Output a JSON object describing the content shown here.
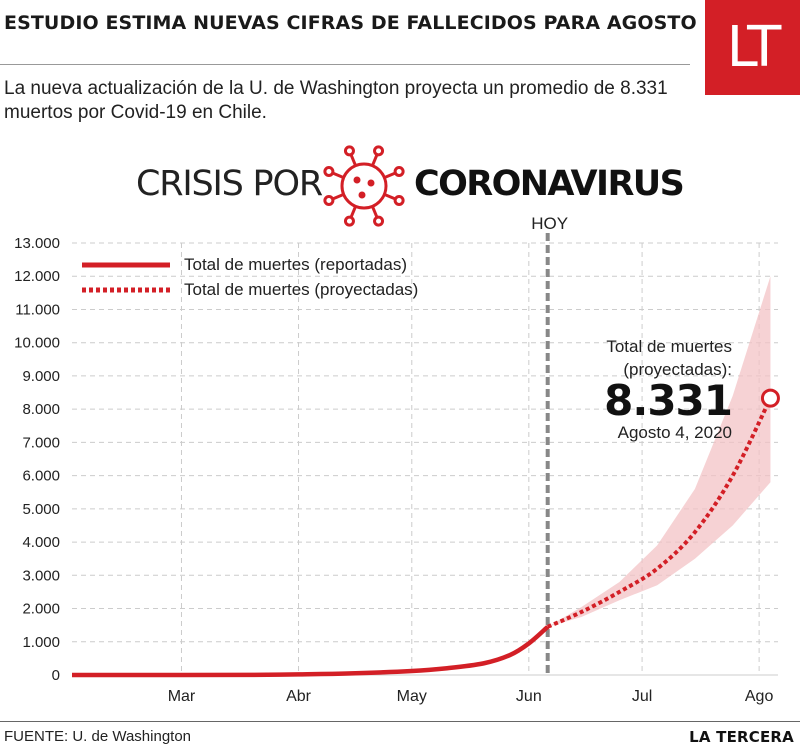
{
  "headline": "ESTUDIO ESTIMA NUEVAS CIFRAS DE FALLECIDOS PARA AGOSTO",
  "logo": "LT",
  "subtitle": "La nueva actualización de la U. de Washington proyecta un promedio de 8.331 muertos por Covid-19 en Chile.",
  "brand": {
    "left": "CRISIS POR",
    "right": "CORONAVIRUS",
    "icon": "coronavirus-icon"
  },
  "colors": {
    "accent": "#d31f26",
    "band": "#f3c3c5",
    "grid": "#cccccc",
    "today": "#888888"
  },
  "footer": {
    "source": "FUENTE: U. de Washington",
    "credit": "LA TERCERA"
  },
  "chart_data": {
    "type": "line",
    "today_label": "HOY",
    "ylim": [
      0,
      13000
    ],
    "yticks": [
      0,
      1000,
      2000,
      3000,
      4000,
      5000,
      6000,
      7000,
      8000,
      9000,
      10000,
      11000,
      12000,
      13000
    ],
    "ytick_labels": [
      "0",
      "1.000",
      "2.000",
      "3.000",
      "4.000",
      "5.000",
      "6.000",
      "7.000",
      "8.000",
      "9.000",
      "10.000",
      "11.000",
      "12.000",
      "13.000"
    ],
    "x_range": [
      "2020-02-01",
      "2020-08-06"
    ],
    "xticks": [
      {
        "date": "2020-03-01",
        "label": "Mar"
      },
      {
        "date": "2020-04-01",
        "label": "Abr"
      },
      {
        "date": "2020-05-01",
        "label": "May"
      },
      {
        "date": "2020-06-01",
        "label": "Jun"
      },
      {
        "date": "2020-07-01",
        "label": "Jul"
      },
      {
        "date": "2020-08-01",
        "label": "Ago"
      }
    ],
    "today": "2020-06-06",
    "legend": [
      "Total de muertes (reportadas)",
      "Total de muertes (proyectadas)"
    ],
    "legend_position": "top-left",
    "series": [
      {
        "name": "Total de muertes (reportadas)",
        "style": "solid",
        "points": [
          [
            "2020-02-01",
            0
          ],
          [
            "2020-03-01",
            0
          ],
          [
            "2020-03-20",
            5
          ],
          [
            "2020-04-01",
            20
          ],
          [
            "2020-04-15",
            50
          ],
          [
            "2020-05-01",
            120
          ],
          [
            "2020-05-10",
            200
          ],
          [
            "2020-05-20",
            350
          ],
          [
            "2020-05-27",
            600
          ],
          [
            "2020-06-01",
            950
          ],
          [
            "2020-06-06",
            1450
          ]
        ]
      },
      {
        "name": "Total de muertes (proyectadas)",
        "style": "dotted",
        "points": [
          [
            "2020-06-06",
            1450
          ],
          [
            "2020-06-15",
            1900
          ],
          [
            "2020-06-25",
            2500
          ],
          [
            "2020-07-05",
            3200
          ],
          [
            "2020-07-15",
            4300
          ],
          [
            "2020-07-25",
            6000
          ],
          [
            "2020-08-04",
            8331
          ]
        ]
      }
    ],
    "band": {
      "upper": [
        [
          "2020-06-06",
          1450
        ],
        [
          "2020-06-15",
          2050
        ],
        [
          "2020-06-25",
          2800
        ],
        [
          "2020-07-05",
          3900
        ],
        [
          "2020-07-15",
          5600
        ],
        [
          "2020-07-25",
          8400
        ],
        [
          "2020-08-04",
          12000
        ]
      ],
      "lower": [
        [
          "2020-06-06",
          1450
        ],
        [
          "2020-06-15",
          1750
        ],
        [
          "2020-06-25",
          2250
        ],
        [
          "2020-07-05",
          2700
        ],
        [
          "2020-07-15",
          3500
        ],
        [
          "2020-07-25",
          4500
        ],
        [
          "2020-08-04",
          5800
        ]
      ]
    },
    "annotation": {
      "line1": "Total de muertes",
      "line2": "(proyectadas):",
      "value": "8.331",
      "date": "Agosto 4, 2020",
      "point": [
        "2020-08-04",
        8331
      ]
    }
  }
}
